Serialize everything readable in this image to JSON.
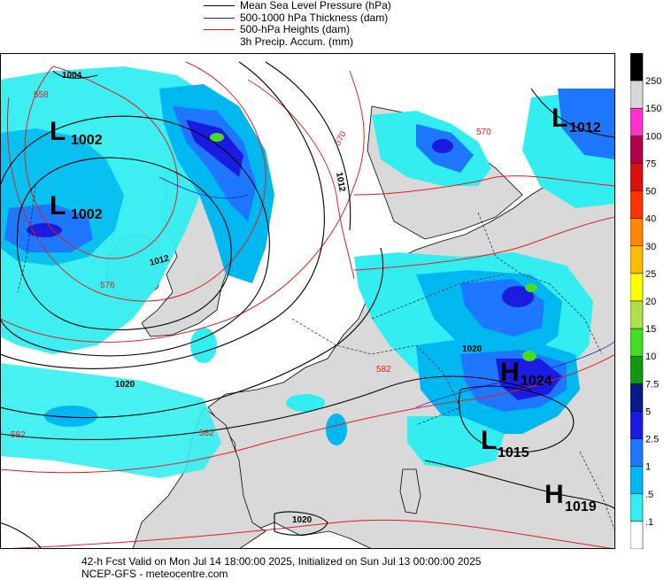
{
  "legend": [
    {
      "label": "Mean Sea Level Pressure (hPa)",
      "color": "#000000"
    },
    {
      "label": "500-1000 hPa Thickness (dam)",
      "color": "#1e1ed0"
    },
    {
      "label": "500-hPa Heights (dam)",
      "color": "#e02020"
    },
    {
      "label": "3h Precip. Accum. (mm)",
      "color": null
    }
  ],
  "pressure_systems": [
    {
      "type": "L",
      "value": "1002"
    },
    {
      "type": "L",
      "value": "1002"
    },
    {
      "type": "L",
      "value": "1012"
    },
    {
      "type": "H",
      "value": "1024"
    },
    {
      "type": "L",
      "value": "1015"
    },
    {
      "type": "H",
      "value": "1019"
    }
  ],
  "isobar_labels": [
    "1004",
    "1012",
    "1012",
    "1020",
    "1020",
    "1020"
  ],
  "height_labels": [
    "558",
    "570",
    "570",
    "576",
    "582",
    "582",
    "582"
  ],
  "precip_scale": {
    "labels": [
      "250",
      "150",
      "100",
      "75",
      "50",
      "40",
      "30",
      "25",
      "20",
      "15",
      "10",
      "7.5",
      "5",
      "2.5",
      "1",
      ".5",
      ".1"
    ],
    "colors": [
      "#000000",
      "#d8d8d8",
      "#ff33cc",
      "#b0004a",
      "#dd1010",
      "#ff3300",
      "#ff8800",
      "#ffbb00",
      "#ffff00",
      "#b0e050",
      "#44dd22",
      "#119911",
      "#0a1a88",
      "#1a1ae0",
      "#1e78ff",
      "#00b8f0",
      "#33eef0",
      "#ffffff"
    ]
  },
  "footer": {
    "line1": "42-h Fcst Valid on Mon Jul 14 18:00:00 2025, Initialized on Sun Jul 13 00:00:00 2025",
    "line2": "NCEP-GFS  -  meteocentre.com"
  },
  "colors": {
    "land": "#d9d9d9",
    "sea": "#ffffff",
    "thickness": "#1e1ed0",
    "heights": "#e02020",
    "mslp": "#000000"
  }
}
